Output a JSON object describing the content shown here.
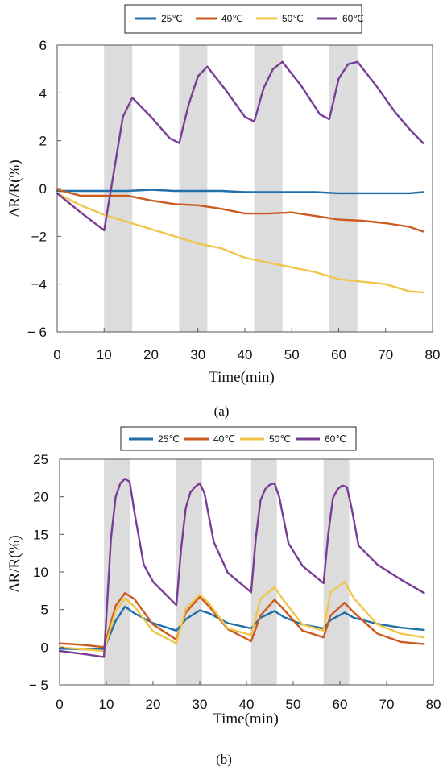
{
  "chart_data": [
    {
      "type": "line",
      "caption": "(a)",
      "xlabel": "Time(min)",
      "ylabel": "ΔR/R(%)",
      "xlim": [
        0,
        80
      ],
      "ylim": [
        -6,
        6
      ],
      "xticks": [
        0,
        10,
        20,
        30,
        40,
        50,
        60,
        70,
        80
      ],
      "yticks": [
        -6,
        -4,
        -2,
        0,
        2,
        4,
        6
      ],
      "ytick_labels": [
        "− 6",
        "−4",
        "−2",
        "0",
        "2",
        "4",
        "6"
      ],
      "grid": false,
      "legend_position": "top",
      "shaded_intervals": [
        [
          10,
          16
        ],
        [
          26,
          32
        ],
        [
          42,
          48
        ],
        [
          58,
          64
        ]
      ],
      "series": [
        {
          "name": "25℃",
          "color": "#1f6fa8",
          "x": [
            0,
            5,
            10,
            15,
            20,
            25,
            30,
            35,
            40,
            45,
            50,
            55,
            60,
            65,
            70,
            75,
            78
          ],
          "y": [
            -0.1,
            -0.1,
            -0.1,
            -0.1,
            -0.05,
            -0.1,
            -0.1,
            -0.1,
            -0.15,
            -0.15,
            -0.15,
            -0.15,
            -0.2,
            -0.2,
            -0.2,
            -0.2,
            -0.15
          ]
        },
        {
          "name": "40℃",
          "color": "#cc5a1e",
          "x": [
            0,
            5,
            10,
            15,
            20,
            25,
            30,
            35,
            40,
            45,
            50,
            55,
            60,
            65,
            70,
            75,
            78
          ],
          "y": [
            -0.05,
            -0.3,
            -0.3,
            -0.3,
            -0.5,
            -0.65,
            -0.7,
            -0.85,
            -1.05,
            -1.05,
            -1.0,
            -1.15,
            -1.3,
            -1.35,
            -1.45,
            -1.6,
            -1.8
          ]
        },
        {
          "name": "50℃",
          "color": "#f0c64a",
          "x": [
            0,
            5,
            10,
            15,
            20,
            25,
            30,
            35,
            40,
            45,
            50,
            55,
            60,
            65,
            70,
            75,
            78
          ],
          "y": [
            -0.2,
            -0.7,
            -1.1,
            -1.4,
            -1.7,
            -2.0,
            -2.3,
            -2.5,
            -2.9,
            -3.1,
            -3.3,
            -3.5,
            -3.8,
            -3.9,
            -4.0,
            -4.3,
            -4.35
          ]
        },
        {
          "name": "60℃",
          "color": "#7a3d97",
          "x": [
            0,
            5,
            10,
            12,
            14,
            16,
            20,
            24,
            26,
            28,
            30,
            32,
            36,
            40,
            42,
            44,
            46,
            48,
            52,
            56,
            58,
            60,
            62,
            64,
            68,
            72,
            75,
            78
          ],
          "y": [
            -0.2,
            -1.0,
            -1.75,
            0.6,
            3.0,
            3.8,
            3.0,
            2.1,
            1.9,
            3.5,
            4.7,
            5.1,
            4.1,
            3.0,
            2.8,
            4.2,
            5.0,
            5.3,
            4.3,
            3.1,
            2.9,
            4.6,
            5.2,
            5.3,
            4.3,
            3.2,
            2.5,
            1.9
          ]
        }
      ]
    },
    {
      "type": "line",
      "caption": "(b)",
      "xlabel": "Time(min)",
      "ylabel": "ΔR/R(%)",
      "xlim": [
        0,
        80
      ],
      "ylim": [
        -5,
        25
      ],
      "xticks": [
        0,
        10,
        20,
        30,
        40,
        50,
        60,
        70,
        80
      ],
      "yticks": [
        -5,
        0,
        5,
        10,
        15,
        20,
        25
      ],
      "ytick_labels": [
        "− 5",
        "0",
        "5",
        "10",
        "15",
        "20",
        "25"
      ],
      "grid": false,
      "legend_position": "top",
      "shaded_intervals": [
        [
          9.5,
          15
        ],
        [
          25,
          30.5
        ],
        [
          41,
          46.5
        ],
        [
          56.5,
          62
        ]
      ],
      "series": [
        {
          "name": "25℃",
          "color": "#1f6fa8",
          "x": [
            0,
            5,
            9.5,
            12,
            14,
            16,
            20,
            25,
            27,
            30,
            32,
            36,
            41,
            43,
            46,
            48,
            52,
            56.5,
            58,
            61,
            63,
            68,
            73,
            78
          ],
          "y": [
            -0.2,
            -0.3,
            -0.3,
            3.5,
            5.4,
            4.5,
            3.2,
            2.2,
            3.7,
            4.9,
            4.5,
            3.2,
            2.5,
            3.9,
            4.8,
            4.0,
            3.0,
            2.5,
            3.6,
            4.6,
            3.9,
            3.1,
            2.6,
            2.3
          ]
        },
        {
          "name": "40℃",
          "color": "#cc5a1e",
          "x": [
            0,
            5,
            9.5,
            12,
            14,
            16,
            20,
            25,
            27,
            30,
            32,
            36,
            41,
            43,
            46,
            48,
            52,
            56.5,
            58,
            61,
            63,
            68,
            73,
            78
          ],
          "y": [
            0.5,
            0.3,
            0.0,
            5.5,
            7.2,
            6.4,
            3.0,
            1.0,
            4.6,
            6.7,
            5.4,
            2.4,
            0.8,
            4.2,
            6.3,
            5.0,
            2.2,
            1.3,
            4.2,
            5.9,
            4.6,
            1.8,
            0.7,
            0.4
          ]
        },
        {
          "name": "50℃",
          "color": "#f0c64a",
          "x": [
            0,
            5,
            9.5,
            12,
            14,
            16,
            20,
            25,
            27,
            30,
            32,
            36,
            41,
            43,
            46,
            48,
            52,
            56.5,
            58,
            61,
            63,
            68,
            73,
            78
          ],
          "y": [
            0.0,
            -0.3,
            -0.5,
            4.8,
            6.5,
            5.4,
            2.1,
            0.5,
            5.1,
            7.0,
            5.8,
            2.5,
            1.6,
            6.4,
            8.0,
            6.2,
            3.0,
            2.2,
            7.3,
            8.7,
            6.5,
            3.0,
            1.8,
            1.3
          ]
        },
        {
          "name": "60℃",
          "color": "#7a3d97",
          "x": [
            0,
            5,
            9.5,
            11,
            12,
            13,
            14,
            15,
            16,
            18,
            20,
            25,
            26,
            27,
            28,
            29,
            30,
            31,
            33,
            36,
            41,
            42,
            43,
            44,
            45,
            46,
            47,
            49,
            52,
            56.5,
            57.5,
            58.5,
            59.5,
            60.5,
            61.5,
            62.5,
            64,
            68,
            73,
            78
          ],
          "y": [
            -0.5,
            -0.9,
            -1.3,
            14.5,
            20.0,
            21.8,
            22.4,
            22.0,
            18.0,
            11.0,
            8.7,
            5.6,
            13.0,
            18.5,
            20.6,
            21.3,
            21.8,
            20.5,
            14.0,
            9.9,
            7.3,
            14.5,
            19.5,
            21.0,
            21.6,
            21.8,
            20.0,
            13.8,
            10.8,
            8.5,
            15.0,
            19.8,
            21.0,
            21.5,
            21.3,
            18.5,
            13.5,
            11.0,
            9.0,
            7.2
          ]
        }
      ]
    }
  ]
}
